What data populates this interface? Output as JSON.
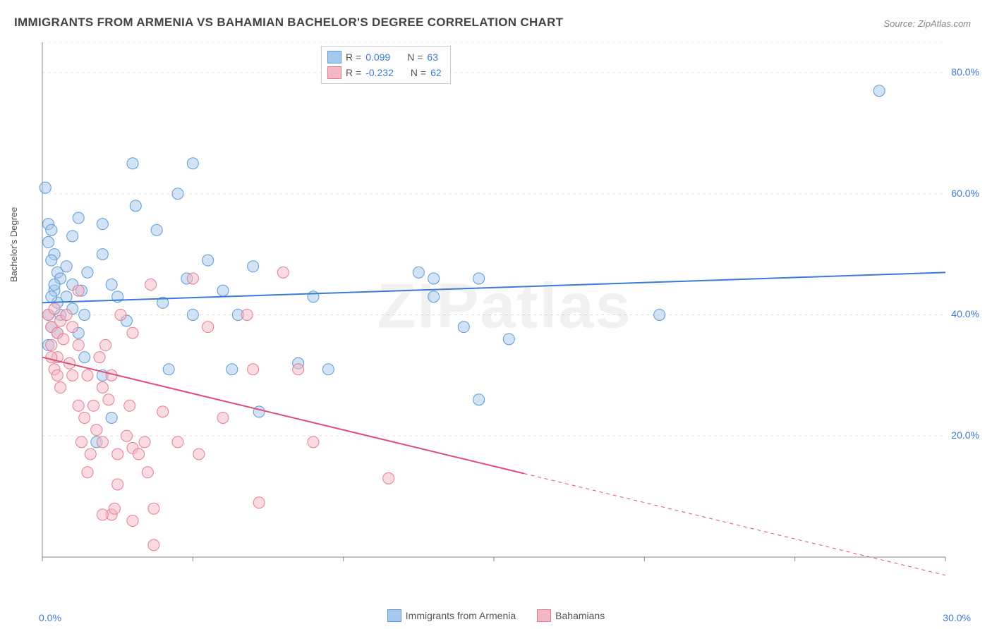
{
  "title": "IMMIGRANTS FROM ARMENIA VS BAHAMIAN BACHELOR'S DEGREE CORRELATION CHART",
  "source": "Source: ZipAtlas.com",
  "watermark": "ZIPatlas",
  "ylabel": "Bachelor's Degree",
  "chart": {
    "type": "scatter",
    "xmin": 0,
    "xmax": 30,
    "ymin": 0,
    "ymax": 85,
    "yticks": [
      20,
      40,
      60,
      80
    ],
    "ytick_labels": [
      "20.0%",
      "40.0%",
      "60.0%",
      "80.0%"
    ],
    "xaxis_min_label": "0.0%",
    "xaxis_max_label": "30.0%",
    "background_color": "#ffffff",
    "grid_color": "#e0e0e0",
    "axis_color": "#888888",
    "marker_radius": 8,
    "marker_opacity": 0.5,
    "line_width": 2,
    "series": [
      {
        "name": "Immigrants from Armenia",
        "color_fill": "#a6c8ec",
        "color_stroke": "#5a9bd5",
        "line_color": "#3a7bd5",
        "R": "0.099",
        "N": "63",
        "trend": {
          "x1": 0,
          "y1": 42,
          "x2": 30,
          "y2": 47,
          "dash_after_x": null
        },
        "points": [
          [
            0.1,
            61
          ],
          [
            0.2,
            55
          ],
          [
            0.3,
            54
          ],
          [
            0.4,
            50
          ],
          [
            0.5,
            47
          ],
          [
            0.4,
            44
          ],
          [
            0.2,
            52
          ],
          [
            0.3,
            49
          ],
          [
            0.5,
            42
          ],
          [
            0.6,
            40
          ],
          [
            0.3,
            38
          ],
          [
            0.2,
            35
          ],
          [
            0.8,
            43
          ],
          [
            1.0,
            45
          ],
          [
            1.2,
            37
          ],
          [
            1.3,
            44
          ],
          [
            1.4,
            40
          ],
          [
            1.5,
            47
          ],
          [
            1.0,
            53
          ],
          [
            1.2,
            56
          ],
          [
            2.0,
            50
          ],
          [
            2.0,
            55
          ],
          [
            2.3,
            45
          ],
          [
            2.5,
            43
          ],
          [
            2.8,
            39
          ],
          [
            3.0,
            65
          ],
          [
            3.1,
            58
          ],
          [
            3.8,
            54
          ],
          [
            4.0,
            42
          ],
          [
            4.2,
            31
          ],
          [
            4.5,
            60
          ],
          [
            4.8,
            46
          ],
          [
            5.0,
            65
          ],
          [
            5.0,
            40
          ],
          [
            5.5,
            49
          ],
          [
            6.0,
            44
          ],
          [
            6.3,
            31
          ],
          [
            6.5,
            40
          ],
          [
            7.0,
            48
          ],
          [
            7.2,
            24
          ],
          [
            8.5,
            32
          ],
          [
            9.0,
            43
          ],
          [
            9.5,
            31
          ],
          [
            12.5,
            47
          ],
          [
            13.0,
            46
          ],
          [
            13.0,
            43
          ],
          [
            14.0,
            38
          ],
          [
            14.5,
            46
          ],
          [
            14.5,
            26
          ],
          [
            15.5,
            36
          ],
          [
            20.5,
            40
          ],
          [
            27.8,
            77
          ],
          [
            0.3,
            43
          ],
          [
            0.6,
            46
          ],
          [
            0.8,
            48
          ],
          [
            1.0,
            41
          ],
          [
            1.4,
            33
          ],
          [
            1.8,
            19
          ],
          [
            2.3,
            23
          ],
          [
            2.0,
            30
          ],
          [
            0.5,
            37
          ],
          [
            0.2,
            40
          ],
          [
            0.4,
            45
          ]
        ]
      },
      {
        "name": "Bahamians",
        "color_fill": "#f3b8c4",
        "color_stroke": "#e77a94",
        "line_color": "#e04e73",
        "R": "-0.232",
        "N": "62",
        "trend": {
          "x1": 0,
          "y1": 33,
          "x2": 30,
          "y2": -3,
          "dash_after_x": 16
        },
        "points": [
          [
            0.2,
            40
          ],
          [
            0.3,
            38
          ],
          [
            0.4,
            41
          ],
          [
            0.5,
            37
          ],
          [
            0.3,
            35
          ],
          [
            0.6,
            39
          ],
          [
            0.5,
            33
          ],
          [
            0.7,
            36
          ],
          [
            0.8,
            40
          ],
          [
            0.4,
            31
          ],
          [
            0.6,
            28
          ],
          [
            0.9,
            32
          ],
          [
            1.0,
            38
          ],
          [
            1.0,
            30
          ],
          [
            1.2,
            35
          ],
          [
            1.2,
            25
          ],
          [
            1.2,
            44
          ],
          [
            1.3,
            19
          ],
          [
            1.4,
            23
          ],
          [
            1.5,
            30
          ],
          [
            1.5,
            14
          ],
          [
            1.6,
            17
          ],
          [
            1.7,
            25
          ],
          [
            1.8,
            21
          ],
          [
            1.9,
            33
          ],
          [
            2.0,
            28
          ],
          [
            2.0,
            19
          ],
          [
            2.1,
            35
          ],
          [
            2.2,
            26
          ],
          [
            2.3,
            7
          ],
          [
            2.3,
            30
          ],
          [
            2.5,
            17
          ],
          [
            2.5,
            12
          ],
          [
            2.6,
            40
          ],
          [
            2.8,
            20
          ],
          [
            2.9,
            25
          ],
          [
            3.0,
            6
          ],
          [
            3.0,
            37
          ],
          [
            3.0,
            18
          ],
          [
            3.2,
            17
          ],
          [
            3.4,
            19
          ],
          [
            3.5,
            14
          ],
          [
            3.6,
            45
          ],
          [
            3.7,
            8
          ],
          [
            3.7,
            2
          ],
          [
            4.0,
            24
          ],
          [
            4.5,
            19
          ],
          [
            5.0,
            46
          ],
          [
            5.2,
            17
          ],
          [
            5.5,
            38
          ],
          [
            6.0,
            23
          ],
          [
            6.8,
            40
          ],
          [
            7.0,
            31
          ],
          [
            7.2,
            9
          ],
          [
            8.0,
            47
          ],
          [
            8.5,
            31
          ],
          [
            9.0,
            19
          ],
          [
            11.5,
            13
          ],
          [
            2.0,
            7
          ],
          [
            2.4,
            8
          ],
          [
            0.3,
            33
          ],
          [
            0.5,
            30
          ]
        ]
      }
    ]
  },
  "legend_top": {
    "swatch1_fill": "#a6c8ec",
    "swatch1_stroke": "#5a9bd5",
    "swatch2_fill": "#f3b8c4",
    "swatch2_stroke": "#e77a94",
    "r_label": "R  =",
    "n_label": "N  ="
  }
}
